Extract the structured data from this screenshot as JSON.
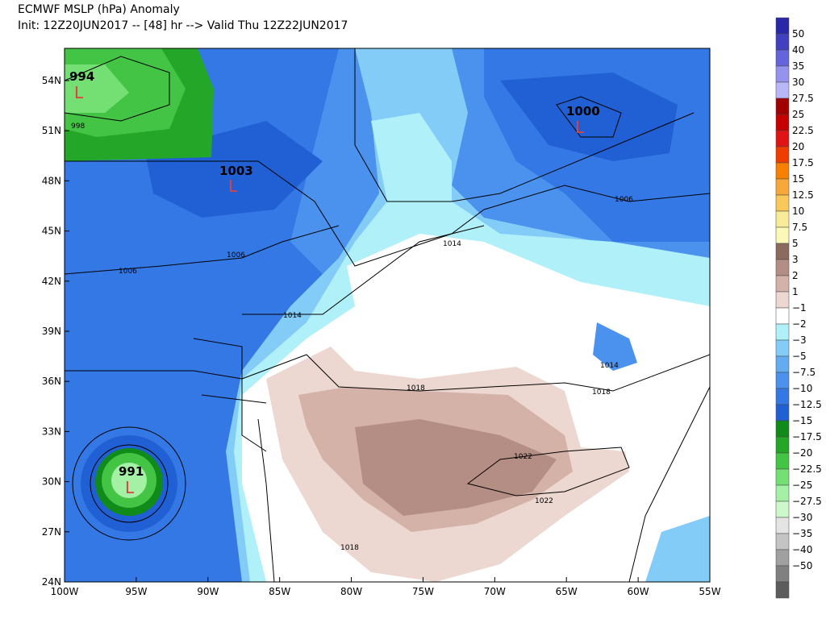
{
  "header": {
    "title": "ECMWF MSLP (hPa) Anomaly",
    "subtitle": "Init: 12Z20JUN2017 -- [48] hr --> Valid Thu 12Z22JUN2017"
  },
  "map": {
    "xlim": [
      -100,
      -55
    ],
    "ylim": [
      24,
      55.93
    ],
    "xticks": [
      {
        "value": -100,
        "label": "100W"
      },
      {
        "value": -95,
        "label": "95W"
      },
      {
        "value": -90,
        "label": "90W"
      },
      {
        "value": -85,
        "label": "85W"
      },
      {
        "value": -80,
        "label": "80W"
      },
      {
        "value": -75,
        "label": "75W"
      },
      {
        "value": -70,
        "label": "70W"
      },
      {
        "value": -65,
        "label": "65W"
      },
      {
        "value": -60,
        "label": "60W"
      },
      {
        "value": -55,
        "label": "55W"
      }
    ],
    "yticks": [
      {
        "value": 24,
        "label": "24N"
      },
      {
        "value": 27,
        "label": "27N"
      },
      {
        "value": 30,
        "label": "30N"
      },
      {
        "value": 33,
        "label": "33N"
      },
      {
        "value": 36,
        "label": "36N"
      },
      {
        "value": 39,
        "label": "39N"
      },
      {
        "value": 42,
        "label": "42N"
      },
      {
        "value": 45,
        "label": "45N"
      },
      {
        "value": 48,
        "label": "48N"
      },
      {
        "value": 51,
        "label": "51N"
      },
      {
        "value": 54,
        "label": "54N"
      }
    ],
    "lows": [
      {
        "label": "994",
        "symbol": "L"
      },
      {
        "label": "1003",
        "symbol": "L"
      },
      {
        "label": "1000",
        "symbol": "L"
      },
      {
        "label": "991",
        "symbol": "L"
      }
    ],
    "contour_labels": [
      "998",
      "1006",
      "1006",
      "1014",
      "1014",
      "1006",
      "1014",
      "1018",
      "1018",
      "1018",
      "1022",
      "1022"
    ]
  },
  "colorbar": {
    "labels": [
      "50",
      "40",
      "35",
      "30",
      "27.5",
      "25",
      "22.5",
      "20",
      "17.5",
      "15",
      "12.5",
      "10",
      "7.5",
      "5",
      "3",
      "2",
      "1",
      "−1",
      "−2",
      "−3",
      "−5",
      "−7.5",
      "−10",
      "−12.5",
      "−15",
      "−17.5",
      "−20",
      "−22.5",
      "−25",
      "−27.5",
      "−30",
      "−35",
      "−40",
      "−50"
    ],
    "colors": [
      "#2828a8",
      "#4040c0",
      "#6464dc",
      "#9494ee",
      "#b8b8f8",
      "#a00000",
      "#c40000",
      "#e01414",
      "#f03c00",
      "#f88000",
      "#f8a838",
      "#f8c858",
      "#f8ec98",
      "#fbf8b8",
      "#8c6a5e",
      "#b48e84",
      "#d4b2a8",
      "#ecd8d0",
      "#ffffff",
      "#b0f0f8",
      "#84ccf8",
      "#64acf0",
      "#4a92ee",
      "#3478e6",
      "#2060d4",
      "#108a18",
      "#24a628",
      "#44c444",
      "#74e074",
      "#a4f0a4",
      "#ccf8cc",
      "#e4e4e4",
      "#c4c4c4",
      "#a0a0a0",
      "#808080",
      "#5c5c5c"
    ]
  }
}
